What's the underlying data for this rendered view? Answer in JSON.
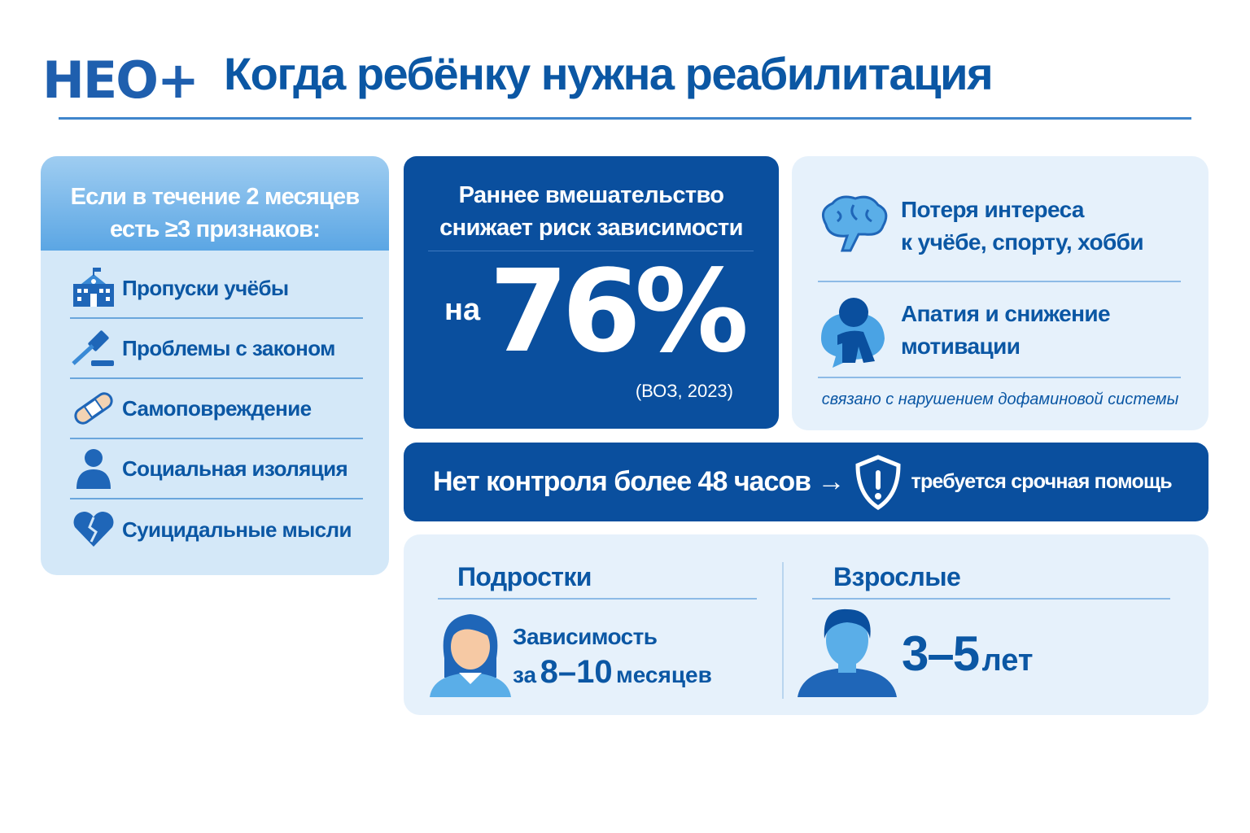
{
  "header": {
    "logo": "НЕО+",
    "title": "Когда ребёнку нужна реабилитация"
  },
  "signs": {
    "heading_line1": "Если в течение 2 месяцев",
    "heading_line2": "есть ≥3 признаков:",
    "items": [
      {
        "label": "Пропуски учёбы",
        "icon": "school-icon"
      },
      {
        "label": "Проблемы с законом",
        "icon": "gavel-icon"
      },
      {
        "label": "Самоповреждение",
        "icon": "bandage-icon"
      },
      {
        "label": "Социальная изоляция",
        "icon": "person-icon"
      },
      {
        "label": "Суицидальные мысли",
        "icon": "broken-heart-icon"
      }
    ]
  },
  "stat": {
    "line1": "Раннее вмешательство",
    "line2": "снижает риск зависимости",
    "prefix": "на",
    "value": "76%",
    "source": "(ВОЗ, 2023)"
  },
  "symptoms": {
    "items": [
      {
        "line1": "Потеря интереса",
        "line2": "к учёбе, спорту, хобби",
        "icon": "brain-icon"
      },
      {
        "line1": "Апатия и снижение",
        "line2": "мотивации",
        "icon": "sad-person-icon"
      }
    ],
    "note": "связано с нарушением дофаминовой системы"
  },
  "banner": {
    "text": "Нет контроля более 48 часов →",
    "action": "требуется срочная помощь",
    "icon": "shield-alert-icon"
  },
  "timeline": {
    "teens": {
      "title": "Подростки",
      "line1": "Зависимость",
      "line2_prefix": "за",
      "value": "8–10",
      "unit": "месяцев"
    },
    "adults": {
      "title": "Взрослые",
      "value": "3–5",
      "unit": "лет"
    }
  },
  "colors": {
    "primary": "#0b57a4",
    "dark": "#0a4f9e",
    "light": "#e6f1fb",
    "accent": "#3aa0e0"
  }
}
